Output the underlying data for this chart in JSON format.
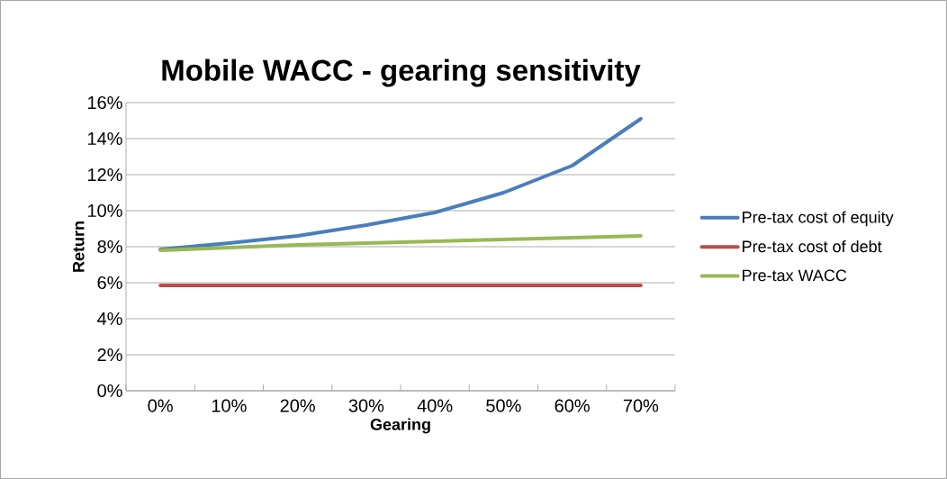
{
  "chart_data": {
    "type": "line",
    "title": "Mobile WACC - gearing sensitivity",
    "xlabel": "Gearing",
    "ylabel": "Return",
    "categories": [
      "0%",
      "10%",
      "20%",
      "30%",
      "40%",
      "50%",
      "60%",
      "70%"
    ],
    "series": [
      {
        "name": "Pre-tax cost of equity",
        "color": "#4a7ebb",
        "values": [
          7.85,
          8.2,
          8.6,
          9.2,
          9.9,
          11.0,
          12.5,
          15.1
        ]
      },
      {
        "name": "Pre-tax cost of debt",
        "color": "#be4b48",
        "values": [
          5.85,
          5.85,
          5.85,
          5.85,
          5.85,
          5.85,
          5.85,
          5.85
        ]
      },
      {
        "name": "Pre-tax WACC",
        "color": "#98b954",
        "values": [
          7.8,
          7.95,
          8.1,
          8.2,
          8.3,
          8.4,
          8.5,
          8.6
        ]
      }
    ],
    "ylim": [
      0,
      16
    ],
    "yticks": [
      {
        "value": 0,
        "label": "0%"
      },
      {
        "value": 2,
        "label": "2%"
      },
      {
        "value": 4,
        "label": "4%"
      },
      {
        "value": 6,
        "label": "6%"
      },
      {
        "value": 8,
        "label": "8%"
      },
      {
        "value": 10,
        "label": "10%"
      },
      {
        "value": 12,
        "label": "12%"
      },
      {
        "value": 14,
        "label": "14%"
      },
      {
        "value": 16,
        "label": "16%"
      }
    ],
    "grid": "y",
    "legend": "right",
    "marker": "none",
    "line_style": "solid"
  }
}
